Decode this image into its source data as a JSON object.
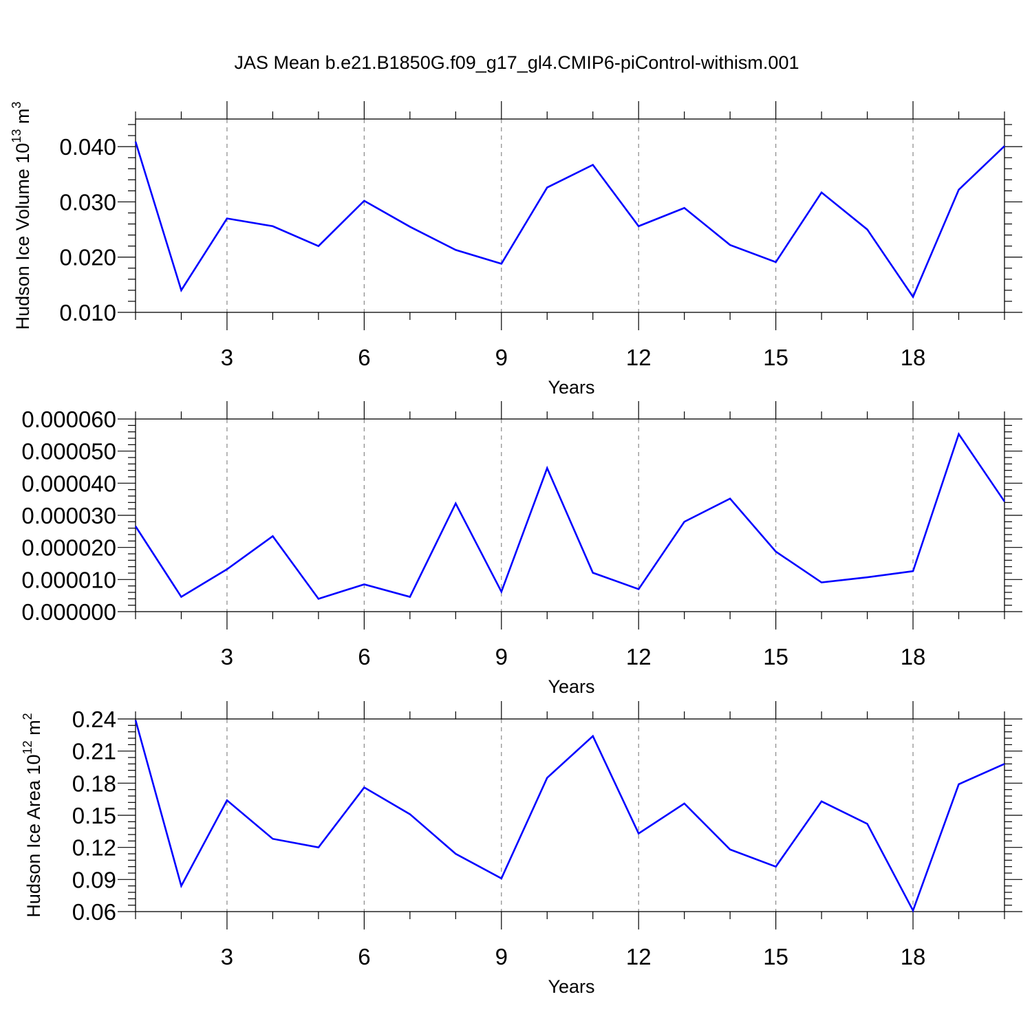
{
  "figure": {
    "title": "JAS Mean b.e21.B1850G.f09_g17_gl4.CMIP6-piControl-withism.001"
  },
  "chart_data": [
    {
      "type": "line",
      "panel": "top",
      "title": "JAS Mean b.e21.B1850G.f09_g17_gl4.CMIP6-piControl-withism.001",
      "xlabel": "Years",
      "ylabel_main": "Hudson Ice Volume 10",
      "ylabel_exp": "13",
      "ylabel_unit": "m",
      "ylabel_unit_exp": "3",
      "xlim": [
        1,
        20
      ],
      "ylim": [
        0.01,
        0.045
      ],
      "xticks": [
        3,
        6,
        9,
        12,
        15,
        18
      ],
      "xtick_labels": [
        "3",
        "6",
        "9",
        "12",
        "15",
        "18"
      ],
      "yticks": [
        0.01,
        0.02,
        0.03,
        0.04
      ],
      "ytick_labels": [
        "0.010",
        "0.020",
        "0.030",
        "0.040"
      ],
      "grid": "vertical-dashed",
      "x": [
        1,
        2,
        3,
        4,
        5,
        6,
        7,
        8,
        9,
        10,
        11,
        12,
        13,
        14,
        15,
        16,
        17,
        18,
        19,
        20
      ],
      "series": [
        {
          "name": "Hudson Ice Volume",
          "color": "#0000ff",
          "values": [
            0.0409,
            0.014,
            0.027,
            0.0256,
            0.022,
            0.0302,
            0.0255,
            0.0213,
            0.0188,
            0.0326,
            0.0367,
            0.0256,
            0.0289,
            0.0222,
            0.0191,
            0.0317,
            0.025,
            0.0128,
            0.0322,
            0.0401
          ]
        }
      ]
    },
    {
      "type": "line",
      "panel": "middle",
      "xlabel": "Years",
      "ylabel_main": "",
      "xlim": [
        1,
        20
      ],
      "ylim": [
        0.0,
        6e-05
      ],
      "xticks": [
        3,
        6,
        9,
        12,
        15,
        18
      ],
      "xtick_labels": [
        "3",
        "6",
        "9",
        "12",
        "15",
        "18"
      ],
      "yticks": [
        0.0,
        1e-05,
        2e-05,
        3e-05,
        4e-05,
        5e-05,
        6e-05
      ],
      "ytick_labels": [
        "0.000000",
        "0.000010",
        "0.000020",
        "0.000030",
        "0.000040",
        "0.000050",
        "0.000060"
      ],
      "grid": "vertical-dashed",
      "x": [
        1,
        2,
        3,
        4,
        5,
        6,
        7,
        8,
        9,
        10,
        11,
        12,
        13,
        14,
        15,
        16,
        17,
        18,
        19,
        20
      ],
      "series": [
        {
          "name": "series",
          "color": "#0000ff",
          "values": [
            2.66e-05,
            4.6e-06,
            1.32e-05,
            2.35e-05,
            4e-06,
            8.5e-06,
            4.6e-06,
            3.37e-05,
            6.2e-06,
            4.47e-05,
            1.21e-05,
            7e-06,
            2.8e-05,
            3.52e-05,
            1.87e-05,
            9.1e-06,
            1.07e-05,
            1.26e-05,
            5.53e-05,
            3.43e-05
          ]
        }
      ]
    },
    {
      "type": "line",
      "panel": "bottom",
      "xlabel": "Years",
      "ylabel_main": "Hudson Ice Area 10",
      "ylabel_exp": "12",
      "ylabel_unit": "m",
      "ylabel_unit_exp": "2",
      "xlim": [
        1,
        20
      ],
      "ylim": [
        0.06,
        0.24
      ],
      "xticks": [
        3,
        6,
        9,
        12,
        15,
        18
      ],
      "xtick_labels": [
        "3",
        "6",
        "9",
        "12",
        "15",
        "18"
      ],
      "yticks": [
        0.06,
        0.09,
        0.12,
        0.15,
        0.18,
        0.21,
        0.24
      ],
      "ytick_labels": [
        "0.06",
        "0.09",
        "0.12",
        "0.15",
        "0.18",
        "0.21",
        "0.24"
      ],
      "grid": "vertical-dashed",
      "x": [
        1,
        2,
        3,
        4,
        5,
        6,
        7,
        8,
        9,
        10,
        11,
        12,
        13,
        14,
        15,
        16,
        17,
        18,
        19,
        20
      ],
      "series": [
        {
          "name": "Hudson Ice Area",
          "color": "#0000ff",
          "values": [
            0.239,
            0.084,
            0.164,
            0.128,
            0.12,
            0.176,
            0.151,
            0.114,
            0.091,
            0.185,
            0.224,
            0.133,
            0.161,
            0.118,
            0.102,
            0.163,
            0.142,
            0.061,
            0.179,
            0.198
          ]
        }
      ]
    }
  ]
}
